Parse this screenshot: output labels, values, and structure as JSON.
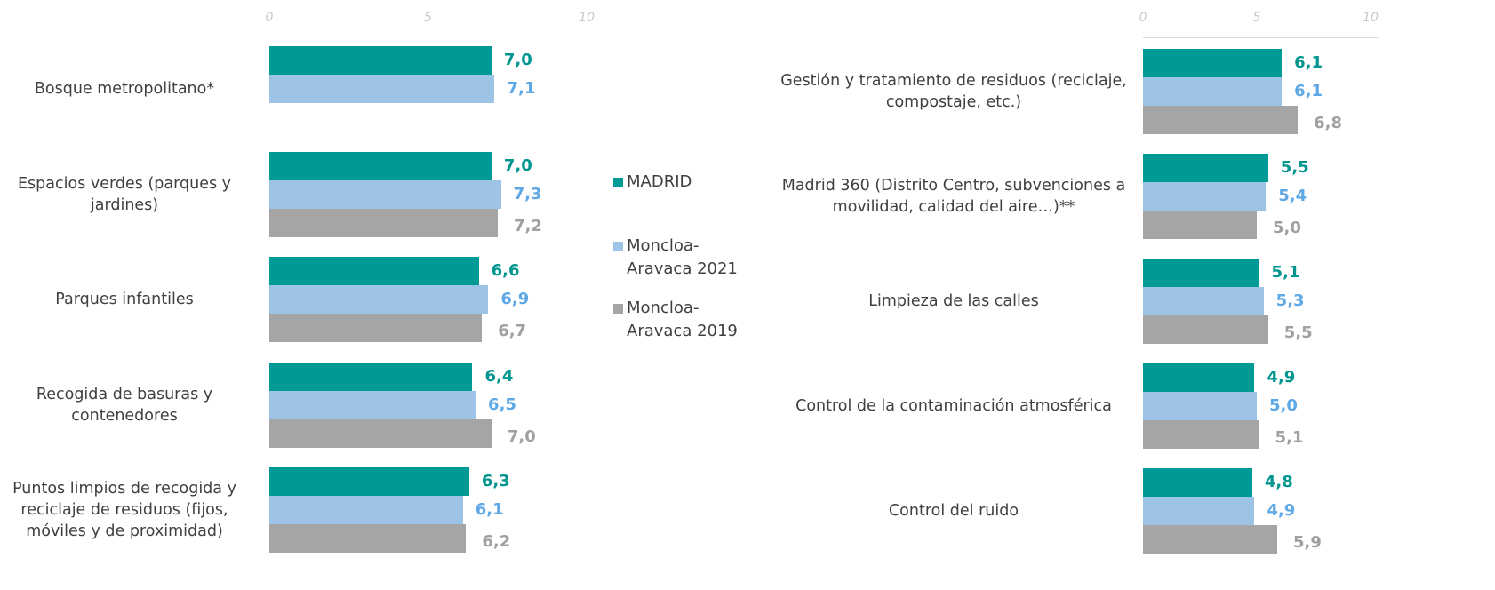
{
  "chart_data": [
    {
      "type": "hbar",
      "categories": [
        "Bosque metropolitano*",
        "Espacios verdes (parques y jardines)",
        "Parques infantiles",
        "Recogida de basuras y contenedores",
        "Puntos limpios de recogida y reciclaje de residuos (fijos, móviles y de proximidad)"
      ],
      "series": [
        {
          "name": "MADRID",
          "color": "#009a96",
          "label_color": "#00958f",
          "values": [
            7.0,
            7.0,
            6.6,
            6.4,
            6.3
          ],
          "value_labels": [
            "7,0",
            "7,0",
            "6,6",
            "6,4",
            "6,3"
          ]
        },
        {
          "name": "Moncloa-Aravaca 2021",
          "color": "#9dc3e6",
          "label_color": "#5fa8e6",
          "values": [
            7.1,
            7.3,
            6.9,
            6.5,
            6.1
          ],
          "value_labels": [
            "7,1",
            "7,3",
            "6,9",
            "6,5",
            "6,1"
          ]
        },
        {
          "name": "Moncloa-Aravaca 2019",
          "color": "#a5a5a5",
          "label_color": "#a0a0a0",
          "values": [
            null,
            7.2,
            6.7,
            7.0,
            6.2
          ],
          "value_labels": [
            null,
            "7,2",
            "6,7",
            "7,0",
            "6,2"
          ]
        }
      ],
      "xlim": [
        0,
        10
      ],
      "xticks": [
        0,
        5,
        10
      ]
    },
    {
      "type": "hbar",
      "categories": [
        "Gestión y tratamiento de residuos (reciclaje, compostaje, etc.)",
        "Madrid 360 (Distrito Centro, subvenciones a movilidad, calidad del aire…)**",
        "Limpieza de las calles",
        "Control de la contaminación atmosférica",
        "Control del ruido"
      ],
      "series": [
        {
          "values": [
            6.1,
            5.5,
            5.1,
            4.9,
            4.8
          ],
          "value_labels": [
            "6,1",
            "5,5",
            "5,1",
            "4,9",
            "4,8"
          ]
        },
        {
          "values": [
            6.1,
            5.4,
            5.3,
            5.0,
            4.9
          ],
          "value_labels": [
            "6,1",
            "5,4",
            "5,3",
            "5,0",
            "4,9"
          ]
        },
        {
          "values": [
            6.8,
            5.0,
            5.5,
            5.1,
            5.9
          ],
          "value_labels": [
            "6,8",
            "5,0",
            "5,5",
            "5,1",
            "5,9"
          ]
        }
      ],
      "xlim": [
        0,
        10
      ],
      "xticks": [
        0,
        5,
        10
      ]
    }
  ]
}
